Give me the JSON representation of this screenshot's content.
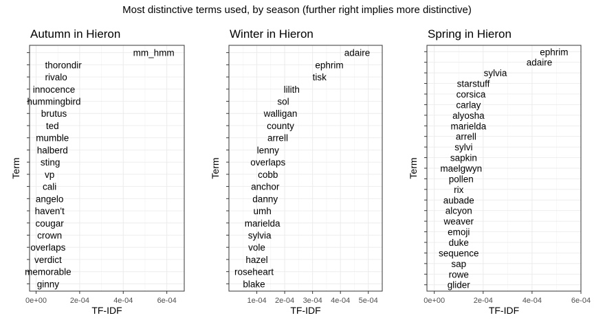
{
  "figure_title": "Most distinctive terms used, by season (further right implies more distinctive)",
  "chart_data": [
    {
      "type": "text-scatter",
      "title": "Autumn in Hieron",
      "xlabel": "TF-IDF",
      "ylabel": "Term",
      "xlim": [
        -3e-05,
        0.00068
      ],
      "xticks": [
        0,
        0.0002,
        0.0004,
        0.0006
      ],
      "xtick_labels": [
        "0e+00",
        "2e-04",
        "4e-04",
        "6e-04"
      ],
      "grid": true,
      "points": [
        {
          "term": "mm_hmm",
          "x": 0.00054
        },
        {
          "term": "thorondir",
          "x": 0.000125
        },
        {
          "term": "rivalo",
          "x": 9.2e-05
        },
        {
          "term": "innocence",
          "x": 8.2e-05
        },
        {
          "term": "hummingbird",
          "x": 8.2e-05
        },
        {
          "term": "brutus",
          "x": 8.2e-05
        },
        {
          "term": "ted",
          "x": 7.5e-05
        },
        {
          "term": "mumble",
          "x": 7.5e-05
        },
        {
          "term": "halberd",
          "x": 7.5e-05
        },
        {
          "term": "sting",
          "x": 6.5e-05
        },
        {
          "term": "vp",
          "x": 6.2e-05
        },
        {
          "term": "cali",
          "x": 6.2e-05
        },
        {
          "term": "angelo",
          "x": 6.2e-05
        },
        {
          "term": "haven't",
          "x": 6.2e-05
        },
        {
          "term": "cougar",
          "x": 6.2e-05
        },
        {
          "term": "crown",
          "x": 6.2e-05
        },
        {
          "term": "overlaps",
          "x": 5.5e-05
        },
        {
          "term": "verdict",
          "x": 5.5e-05
        },
        {
          "term": "memorable",
          "x": 5.5e-05
        },
        {
          "term": "ginny",
          "x": 5.5e-05
        }
      ]
    },
    {
      "type": "text-scatter",
      "title": "Winter in Hieron",
      "xlabel": "TF-IDF",
      "ylabel": "Term",
      "xlim": [
        0,
        0.00055
      ],
      "xticks": [
        0.0001,
        0.0002,
        0.0003,
        0.0004,
        0.0005
      ],
      "xtick_labels": [
        "1e-04",
        "2e-04",
        "3e-04",
        "4e-04",
        "5e-04"
      ],
      "grid": true,
      "points": [
        {
          "term": "adaire",
          "x": 0.00046
        },
        {
          "term": "ephrim",
          "x": 0.00036
        },
        {
          "term": "tisk",
          "x": 0.000325
        },
        {
          "term": "lilith",
          "x": 0.000225
        },
        {
          "term": "sol",
          "x": 0.000195
        },
        {
          "term": "walligan",
          "x": 0.000185
        },
        {
          "term": "county",
          "x": 0.000185
        },
        {
          "term": "arrell",
          "x": 0.000175
        },
        {
          "term": "lenny",
          "x": 0.00014
        },
        {
          "term": "overlaps",
          "x": 0.00014
        },
        {
          "term": "cobb",
          "x": 0.00014
        },
        {
          "term": "anchor",
          "x": 0.00013
        },
        {
          "term": "danny",
          "x": 0.00013
        },
        {
          "term": "umh",
          "x": 0.00012
        },
        {
          "term": "marielda",
          "x": 0.00012
        },
        {
          "term": "sylvia",
          "x": 0.00011
        },
        {
          "term": "vole",
          "x": 0.0001
        },
        {
          "term": "hazel",
          "x": 0.0001
        },
        {
          "term": "roseheart",
          "x": 9e-05
        },
        {
          "term": "blake",
          "x": 9e-05
        }
      ]
    },
    {
      "type": "text-scatter",
      "title": "Spring in Hieron",
      "xlabel": "TF-IDF",
      "ylabel": "Term",
      "xlim": [
        -3e-05,
        0.0006
      ],
      "xticks": [
        0,
        0.0002,
        0.0004,
        0.0006
      ],
      "xtick_labels": [
        "0e+00",
        "2e-04",
        "4e-04",
        "6e-04"
      ],
      "grid": true,
      "points": [
        {
          "term": "ephrim",
          "x": 0.00049
        },
        {
          "term": "adaire",
          "x": 0.00043
        },
        {
          "term": "sylvia",
          "x": 0.00025
        },
        {
          "term": "starstuff",
          "x": 0.00016
        },
        {
          "term": "corsica",
          "x": 0.00015
        },
        {
          "term": "carlay",
          "x": 0.00014
        },
        {
          "term": "alyosha",
          "x": 0.00014
        },
        {
          "term": "marielda",
          "x": 0.00014
        },
        {
          "term": "arrell",
          "x": 0.00013
        },
        {
          "term": "sylvi",
          "x": 0.00012
        },
        {
          "term": "sapkin",
          "x": 0.00012
        },
        {
          "term": "maelgwyn",
          "x": 0.00011
        },
        {
          "term": "pollen",
          "x": 0.00011
        },
        {
          "term": "rix",
          "x": 0.0001
        },
        {
          "term": "aubade",
          "x": 0.0001
        },
        {
          "term": "alcyon",
          "x": 0.0001
        },
        {
          "term": "weaver",
          "x": 0.0001
        },
        {
          "term": "emoji",
          "x": 0.0001
        },
        {
          "term": "duke",
          "x": 0.0001
        },
        {
          "term": "sequence",
          "x": 0.0001
        },
        {
          "term": "sap",
          "x": 0.0001
        },
        {
          "term": "rowe",
          "x": 0.0001
        },
        {
          "term": "glider",
          "x": 0.0001
        }
      ]
    }
  ]
}
